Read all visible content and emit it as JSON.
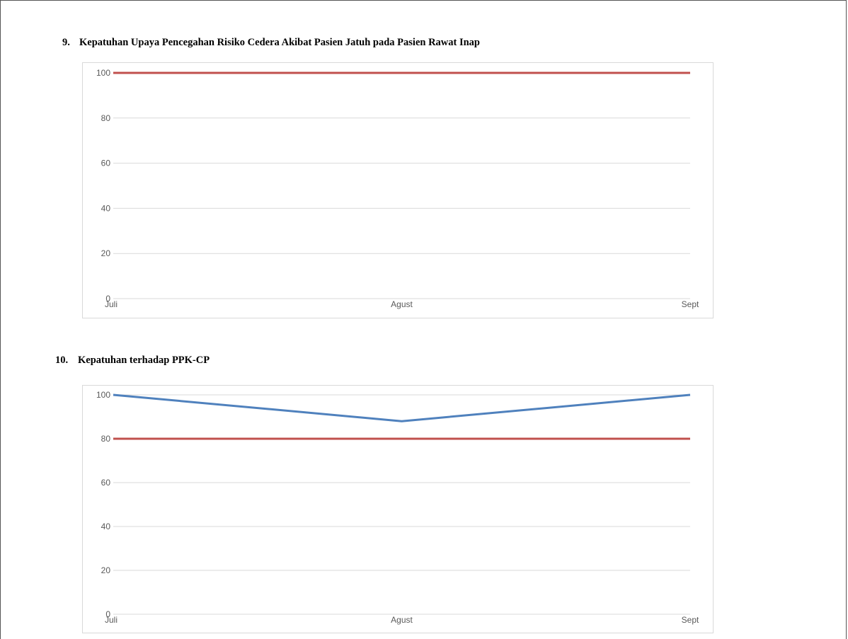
{
  "sections": [
    {
      "number": "9.",
      "title": "Kepatuhan Upaya Pencegahan Risiko Cedera Akibat Pasien Jatuh pada Pasien Rawat Inap"
    },
    {
      "number": "10.",
      "title": "Kepatuhan terhadap PPK-CP"
    }
  ],
  "colors": {
    "target": "#c0504d",
    "actual": "#4f81bd",
    "grid": "#d9d9d9",
    "tick_text": "#595959"
  },
  "chart_data": [
    {
      "type": "line",
      "categories": [
        "Juli",
        "Agust",
        "Sept"
      ],
      "yticks": [
        0,
        20,
        40,
        60,
        80,
        100
      ],
      "ylim": [
        0,
        100
      ],
      "grid": true,
      "series": [
        {
          "color": "#c0504d",
          "values": [
            100,
            100,
            100
          ]
        }
      ]
    },
    {
      "type": "line",
      "categories": [
        "Juli",
        "Agust",
        "Sept"
      ],
      "yticks": [
        0,
        20,
        40,
        60,
        80,
        100
      ],
      "ylim": [
        0,
        100
      ],
      "grid": true,
      "series": [
        {
          "color": "#4f81bd",
          "values": [
            100,
            88,
            100
          ]
        },
        {
          "color": "#c0504d",
          "values": [
            80,
            80,
            80
          ]
        }
      ]
    }
  ]
}
